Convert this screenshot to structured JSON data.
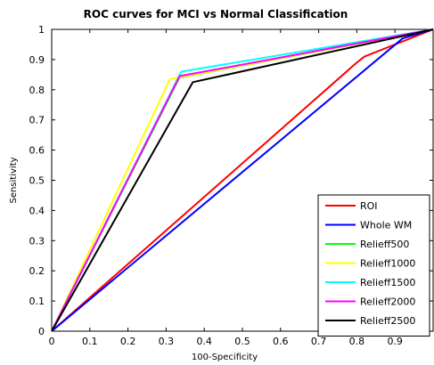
{
  "chart_data": {
    "type": "line",
    "title": "ROC curves for MCI vs Normal Classification",
    "xlabel": "100-Specificity",
    "ylabel": "Sensitivity",
    "xlim": [
      0,
      1
    ],
    "ylim": [
      0,
      1
    ],
    "xticks": [
      "0",
      "0.1",
      "0.2",
      "0.3",
      "0.4",
      "0.5",
      "0.6",
      "0.7",
      "0.8",
      "0.9"
    ],
    "yticks": [
      "0",
      "0.1",
      "0.2",
      "0.3",
      "0.4",
      "0.5",
      "0.6",
      "0.7",
      "0.8",
      "0.9",
      "1"
    ],
    "grid": false,
    "legend_position": "bottom-right",
    "series": [
      {
        "name": "ROI",
        "color": "#ff0000",
        "x": [
          0,
          0.8,
          0.82,
          1
        ],
        "y": [
          0,
          0.89,
          0.91,
          1
        ]
      },
      {
        "name": "Whole WM",
        "color": "#0000ff",
        "x": [
          0,
          0.92,
          1
        ],
        "y": [
          0,
          0.97,
          1
        ]
      },
      {
        "name": "Relieff500",
        "color": "#00ff00",
        "x": [
          0,
          0.335,
          1
        ],
        "y": [
          0,
          0.84,
          1
        ]
      },
      {
        "name": "Relieff1000",
        "color": "#ffff00",
        "x": [
          0,
          0.31,
          1
        ],
        "y": [
          0,
          0.835,
          1
        ]
      },
      {
        "name": "Relieff1500",
        "color": "#00ffff",
        "x": [
          0,
          0.34,
          1
        ],
        "y": [
          0,
          0.86,
          1
        ]
      },
      {
        "name": "Relieff2000",
        "color": "#ff00ff",
        "x": [
          0,
          0.335,
          1
        ],
        "y": [
          0,
          0.845,
          1
        ]
      },
      {
        "name": "Relieff2500",
        "color": "#000000",
        "x": [
          0,
          0.37,
          1
        ],
        "y": [
          0,
          0.825,
          1
        ]
      }
    ]
  }
}
